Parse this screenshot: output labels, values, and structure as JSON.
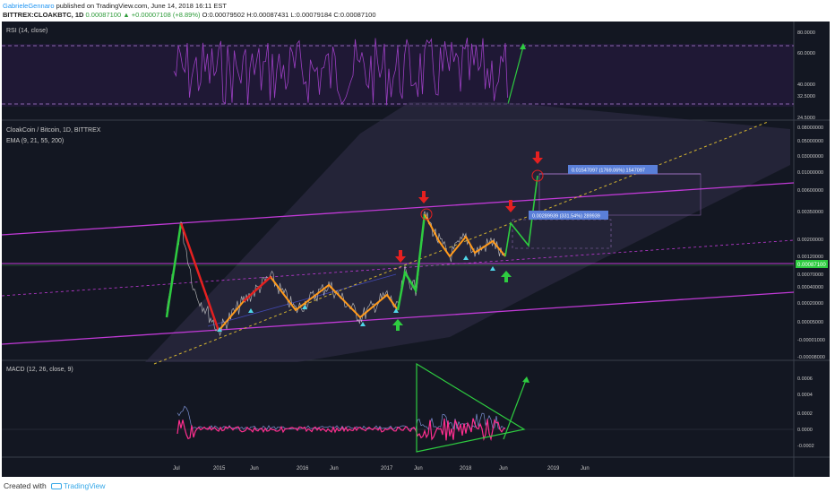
{
  "header": {
    "author": "GabrieleGennaro",
    "published": "published on TradingView.com, June 14, 2018 16:11 EST",
    "symbol": "BITTREX:CLOAKBTC, 1D",
    "last": "0.00087100",
    "change": "+0.00007108 (+8.89%)",
    "ohlc": "O:0.00079502 H:0.00087431 L:0.00079184 C:0.00087100"
  },
  "footer": {
    "created_with": "Created with",
    "brand": "TradingView"
  },
  "colors": {
    "bg": "#131722",
    "rsi": "#9b3fc2",
    "macd_hist": "#ff2e8f",
    "up": "#2ecc40",
    "down": "#e52020",
    "bull": "#ff9a1c",
    "channel": "#c03ad6",
    "dashed": "#d4b530"
  },
  "chart_data": [
    {
      "type": "line",
      "title": "RSI (14, close)",
      "ylim": [
        24.5,
        88
      ],
      "y_ticks": [
        "80.0000",
        "60.0000",
        "40.0000",
        "32.5000",
        "24.5000"
      ],
      "levels": [
        70,
        30
      ]
    },
    {
      "type": "line",
      "title": "CloakCoin / Bitcoin, 1D, BITTREX",
      "subtitle": "EMA (9, 21, 55, 200)",
      "scale": "log",
      "y_ticks": [
        "0.08000000",
        "0.05000000",
        "0.03000000",
        "0.01000000",
        "0.00600000",
        "0.00350000",
        "0.00200000",
        "0.00120000",
        "0.00070000",
        "0.00040000",
        "0.00020000",
        "0.00005000",
        "-0.00001000",
        "-0.00008000"
      ],
      "price_label": "0.00087100",
      "annotations": [
        "0.01547097 (1769.06%) 1547097",
        "0.00289939 (331.54%) 289939"
      ]
    },
    {
      "type": "line",
      "title": "MACD (12, 26, close, 9)",
      "ylim": [
        -0.0003,
        0.0007
      ],
      "y_ticks": [
        "0.0006",
        "0.0004",
        "0.0002",
        "0.0000",
        "-0.0002"
      ]
    }
  ],
  "x_axis": {
    "ticks": [
      "Jul",
      "2015",
      "Jun",
      "2016",
      "Jun",
      "2017",
      "Jun",
      "2018",
      "Jun",
      "2019",
      "Jun"
    ]
  }
}
